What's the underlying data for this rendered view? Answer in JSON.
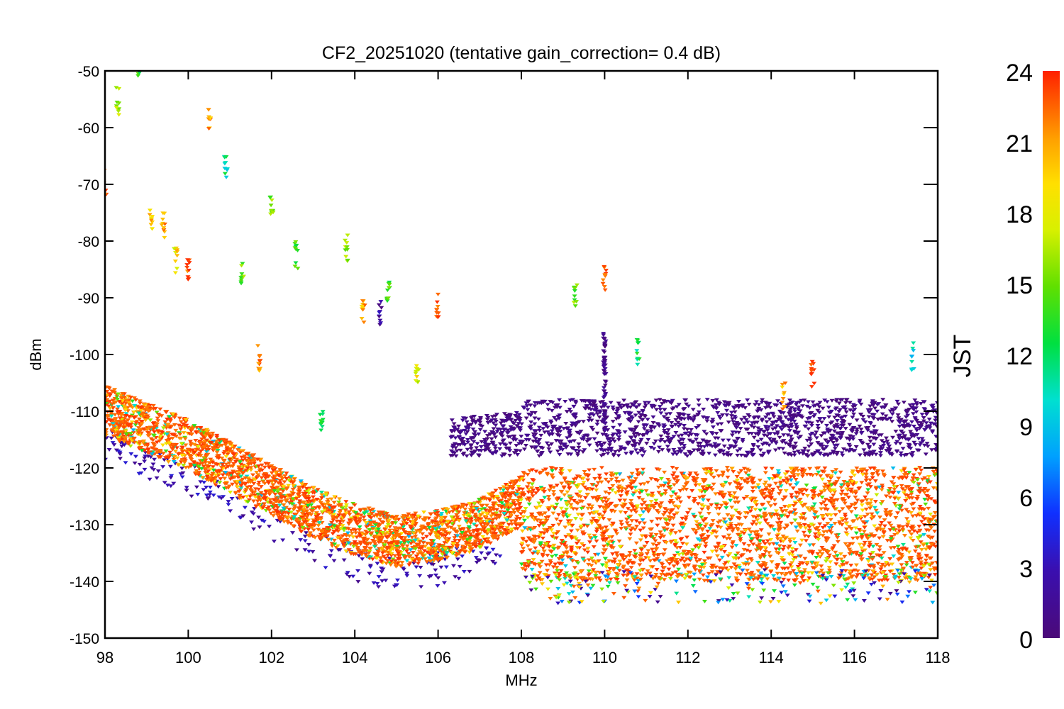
{
  "chart_data": {
    "type": "scatter",
    "title": "CF2_20251020 (tentative gain_correction=  0.4 dB)",
    "xlabel": "MHz",
    "ylabel": "dBm",
    "xlim": [
      98,
      118
    ],
    "ylim": [
      -150,
      -50
    ],
    "x_ticks": [
      98,
      100,
      102,
      104,
      106,
      108,
      110,
      112,
      114,
      116,
      118
    ],
    "y_ticks": [
      -50,
      -60,
      -70,
      -80,
      -90,
      -100,
      -110,
      -120,
      -130,
      -140,
      -150
    ],
    "colorbar": {
      "label": "JST",
      "range": [
        0,
        24
      ],
      "ticks": [
        0,
        3,
        6,
        9,
        12,
        15,
        18,
        21,
        24
      ],
      "colormap": "rainbow"
    },
    "noise_floor": [
      {
        "x": 98,
        "y": -110
      },
      {
        "x": 100,
        "y": -116
      },
      {
        "x": 102,
        "y": -124
      },
      {
        "x": 103,
        "y": -128
      },
      {
        "x": 104,
        "y": -131
      },
      {
        "x": 105,
        "y": -133
      },
      {
        "x": 106,
        "y": -132
      },
      {
        "x": 107,
        "y": -130
      },
      {
        "x": 108,
        "y": -126
      },
      {
        "x": 108.01,
        "y": -130
      },
      {
        "x": 118,
        "y": -130
      }
    ],
    "background_band_jst0": {
      "x_range": [
        106.3,
        118
      ],
      "y_range": [
        -118,
        -108
      ]
    },
    "stations": [
      {
        "mhz": 98.0,
        "peak_dbm": -72,
        "jst": 22
      },
      {
        "mhz": 98.3,
        "peak_dbm": -58,
        "jst": 16
      },
      {
        "mhz": 98.8,
        "peak_dbm": -51,
        "jst": 14
      },
      {
        "mhz": 99.1,
        "peak_dbm": -78,
        "jst": 20
      },
      {
        "mhz": 99.4,
        "peak_dbm": -80,
        "jst": 21
      },
      {
        "mhz": 99.7,
        "peak_dbm": -86,
        "jst": 19
      },
      {
        "mhz": 100.0,
        "peak_dbm": -87,
        "jst": 23
      },
      {
        "mhz": 100.5,
        "peak_dbm": -61,
        "jst": 21
      },
      {
        "mhz": 100.9,
        "peak_dbm": -70,
        "jst": 11
      },
      {
        "mhz": 101.3,
        "peak_dbm": -88,
        "jst": 15
      },
      {
        "mhz": 101.7,
        "peak_dbm": -103,
        "jst": 22
      },
      {
        "mhz": 102.0,
        "peak_dbm": -77,
        "jst": 15
      },
      {
        "mhz": 102.6,
        "peak_dbm": -85,
        "jst": 14
      },
      {
        "mhz": 103.2,
        "peak_dbm": -115,
        "jst": 12
      },
      {
        "mhz": 103.8,
        "peak_dbm": -84,
        "jst": 16
      },
      {
        "mhz": 104.2,
        "peak_dbm": -95,
        "jst": 21
      },
      {
        "mhz": 104.6,
        "peak_dbm": -95,
        "jst": 2
      },
      {
        "mhz": 104.8,
        "peak_dbm": -91,
        "jst": 14
      },
      {
        "mhz": 105.5,
        "peak_dbm": -105,
        "jst": 18
      },
      {
        "mhz": 106.0,
        "peak_dbm": -94,
        "jst": 23
      },
      {
        "mhz": 109.3,
        "peak_dbm": -92,
        "jst": 15
      },
      {
        "mhz": 110.0,
        "peak_dbm": -89,
        "jst": 23
      },
      {
        "mhz": 110.8,
        "peak_dbm": -102,
        "jst": 12
      },
      {
        "mhz": 114.3,
        "peak_dbm": -110,
        "jst": 21
      },
      {
        "mhz": 115.0,
        "peak_dbm": -106,
        "jst": 23
      },
      {
        "mhz": 117.4,
        "peak_dbm": -103,
        "jst": 10
      }
    ]
  }
}
